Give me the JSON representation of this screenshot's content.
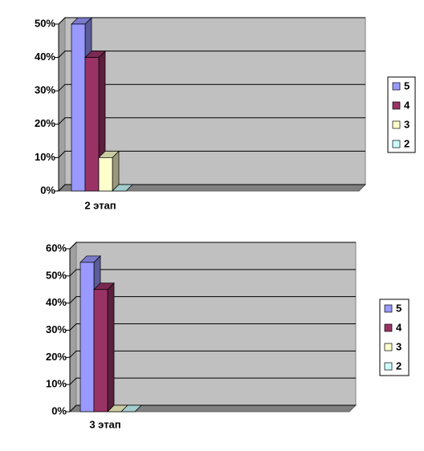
{
  "chart_data": [
    {
      "type": "bar",
      "categories": [
        "2 этап"
      ],
      "series": [
        {
          "name": "5",
          "color": "#9999ff",
          "values": [
            50
          ]
        },
        {
          "name": "4",
          "color": "#993366",
          "values": [
            40
          ]
        },
        {
          "name": "3",
          "color": "#ffffcc",
          "values": [
            10
          ]
        },
        {
          "name": "2",
          "color": "#ccffff",
          "values": [
            0
          ]
        }
      ],
      "ylim": [
        0,
        50
      ],
      "yticks": [
        {
          "value": 0,
          "label": "0%"
        },
        {
          "value": 10,
          "label": "10%"
        },
        {
          "value": 20,
          "label": "20%"
        },
        {
          "value": 30,
          "label": "30%"
        },
        {
          "value": 40,
          "label": "40%"
        },
        {
          "value": 50,
          "label": "50%"
        }
      ],
      "grid": true,
      "legend": "right"
    },
    {
      "type": "bar",
      "categories": [
        "3 этап"
      ],
      "series": [
        {
          "name": "5",
          "color": "#9999ff",
          "values": [
            55
          ]
        },
        {
          "name": "4",
          "color": "#993366",
          "values": [
            45
          ]
        },
        {
          "name": "3",
          "color": "#ffffcc",
          "values": [
            0
          ]
        },
        {
          "name": "2",
          "color": "#ccffff",
          "values": [
            0
          ]
        }
      ],
      "ylim": [
        0,
        60
      ],
      "yticks": [
        {
          "value": 0,
          "label": "0%"
        },
        {
          "value": 10,
          "label": "10%"
        },
        {
          "value": 20,
          "label": "20%"
        },
        {
          "value": 30,
          "label": "30%"
        },
        {
          "value": 40,
          "label": "40%"
        },
        {
          "value": 50,
          "label": "50%"
        },
        {
          "value": 60,
          "label": "60%"
        }
      ],
      "grid": true,
      "legend": "right"
    }
  ]
}
